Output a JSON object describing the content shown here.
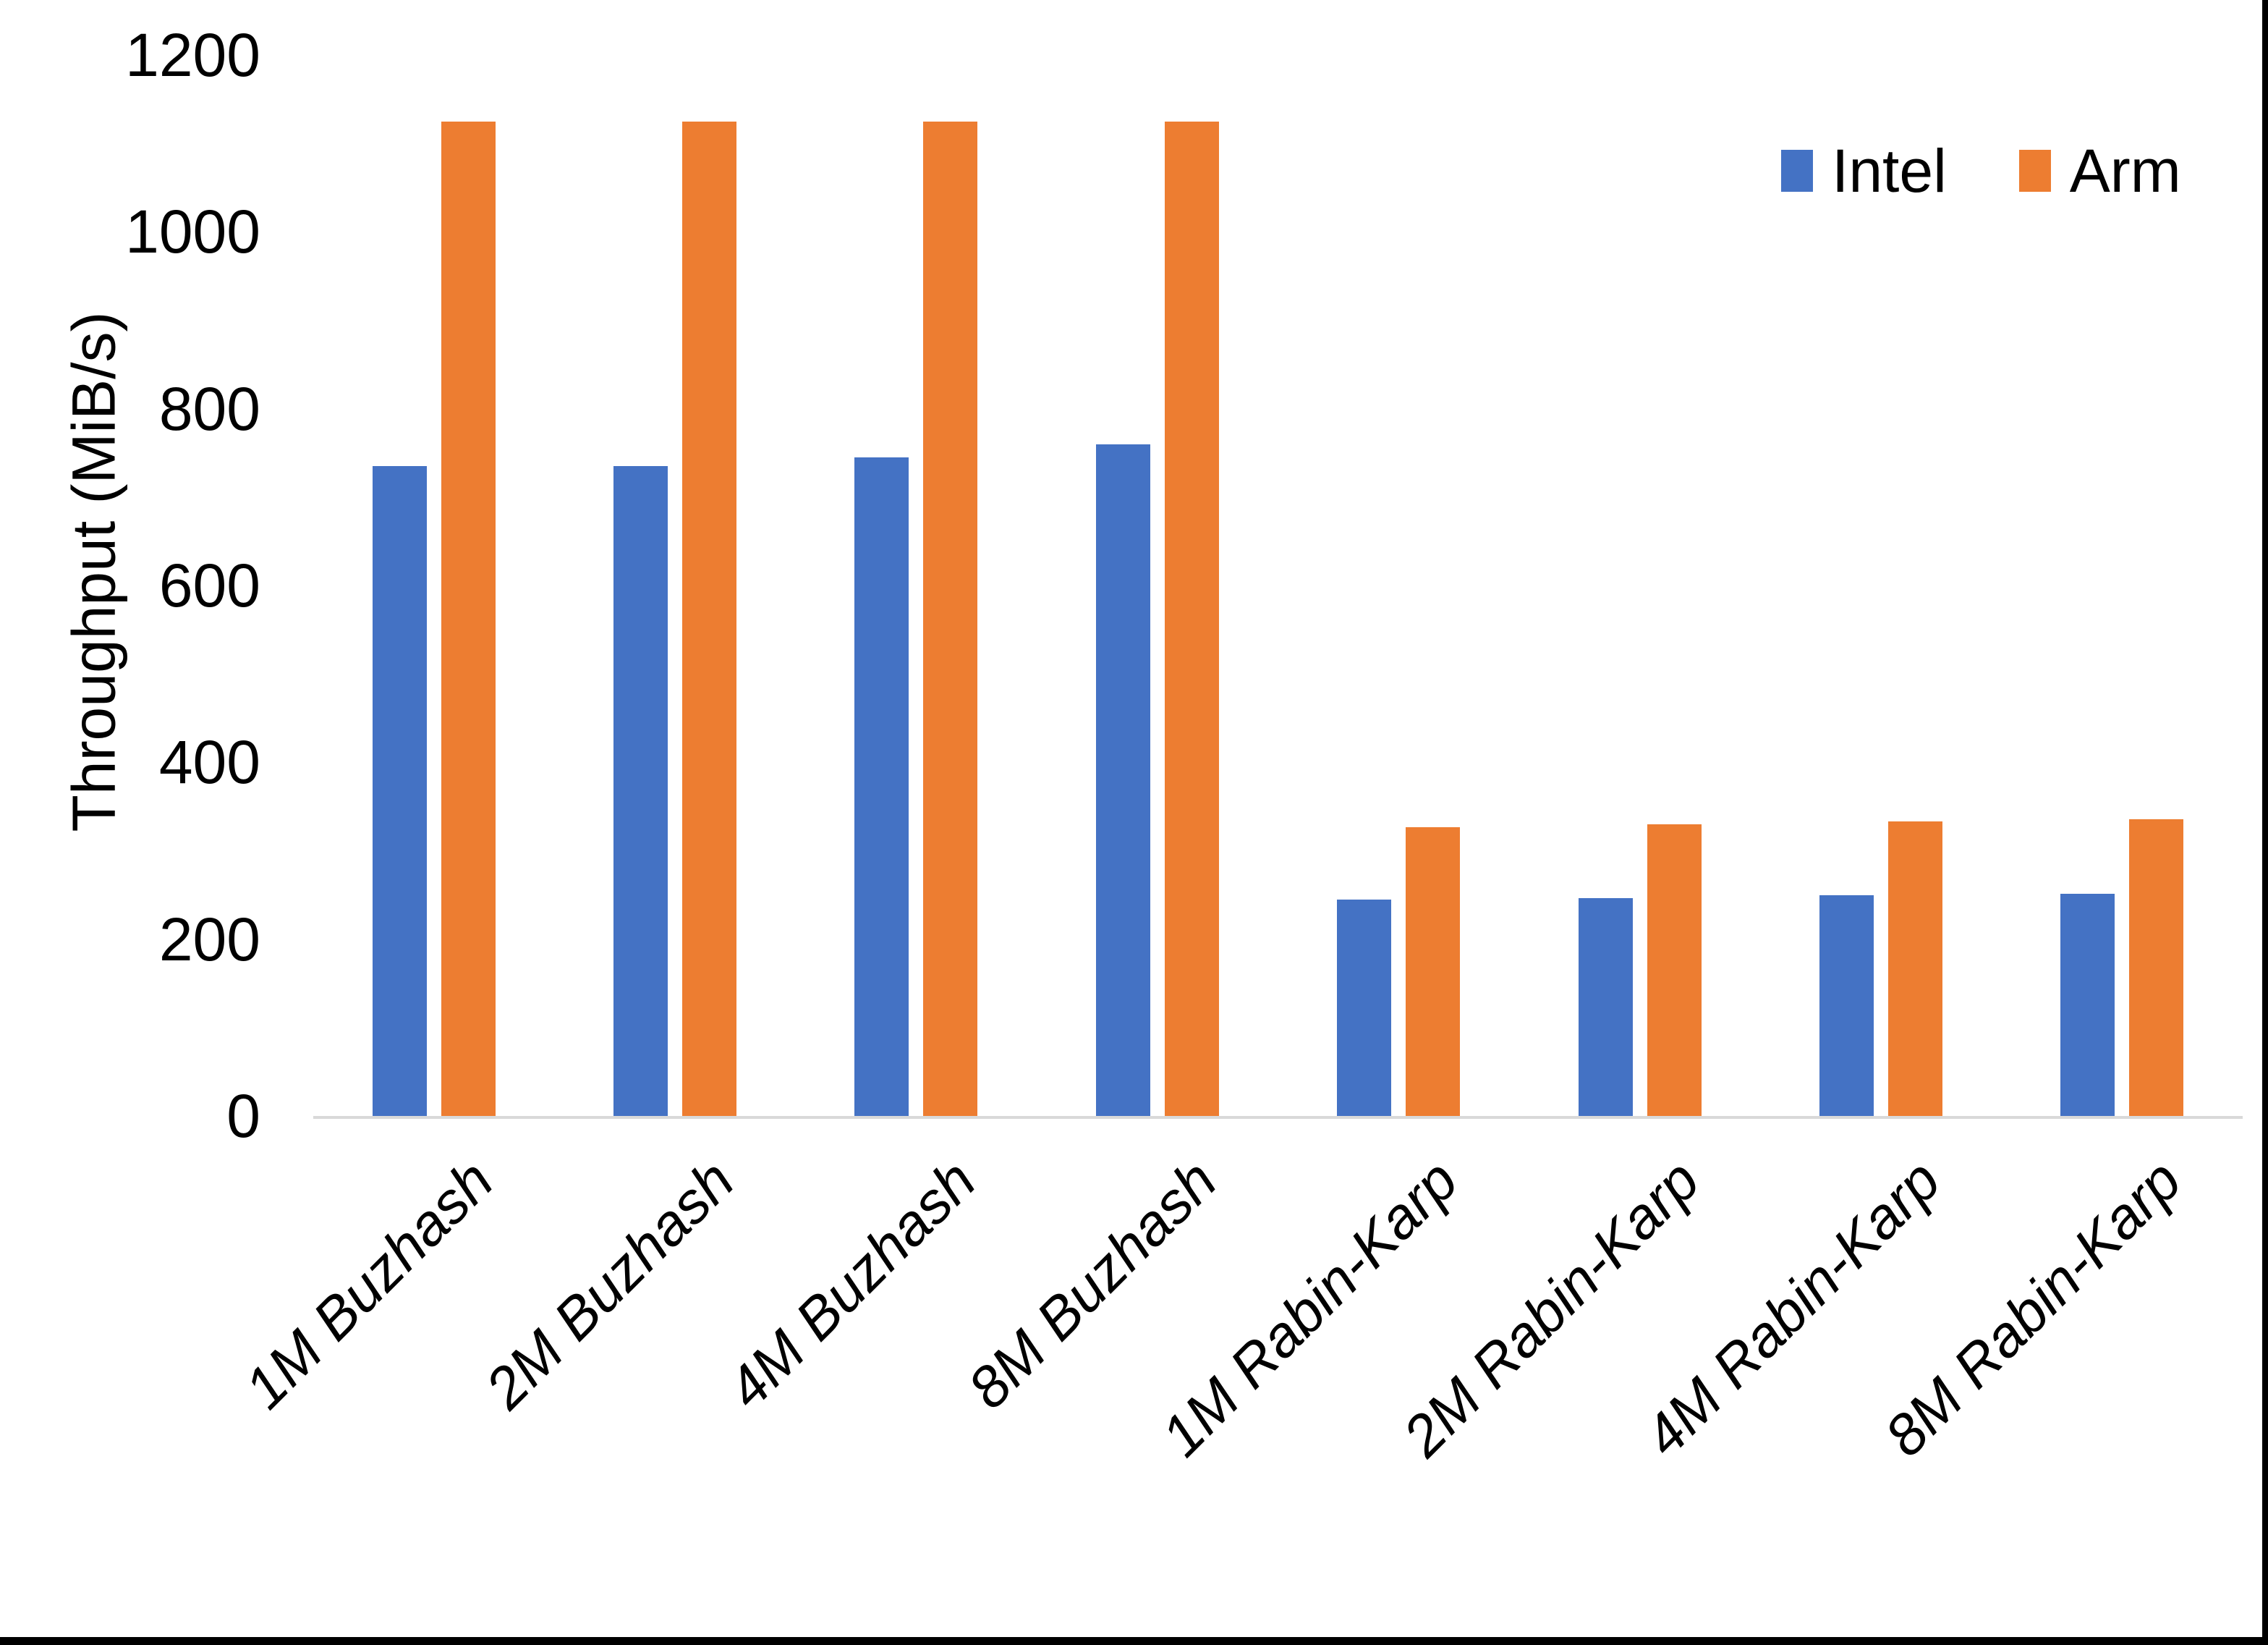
{
  "chart_data": {
    "type": "bar",
    "title": "",
    "xlabel": "",
    "ylabel": "Throughput (MiB/s)",
    "categories": [
      "1M Buzhash",
      "2M Buzhash",
      "4M Buzhash",
      "8M Buzhash",
      "1M Rabin-Karp",
      "2M Rabin-Karp",
      "4M Rabin-Karp",
      "8M Rabin-Karp"
    ],
    "series": [
      {
        "name": "Intel",
        "color": "#4472C4",
        "values": [
          735,
          735,
          745,
          760,
          245,
          246,
          250,
          251
        ]
      },
      {
        "name": "Arm",
        "color": "#ED7D31",
        "values": [
          1125,
          1125,
          1125,
          1125,
          327,
          330,
          333,
          336
        ]
      }
    ],
    "ylim": [
      0,
      1200
    ],
    "yticks": [
      0,
      200,
      400,
      600,
      800,
      1000,
      1200
    ],
    "grid": false,
    "legend_position": "top-right",
    "axis_line_color": "#D9D9D9",
    "text_color": "#000000",
    "category_label_style": "italic, rotated 45deg"
  },
  "frame": {
    "edge_color": "#000000"
  }
}
